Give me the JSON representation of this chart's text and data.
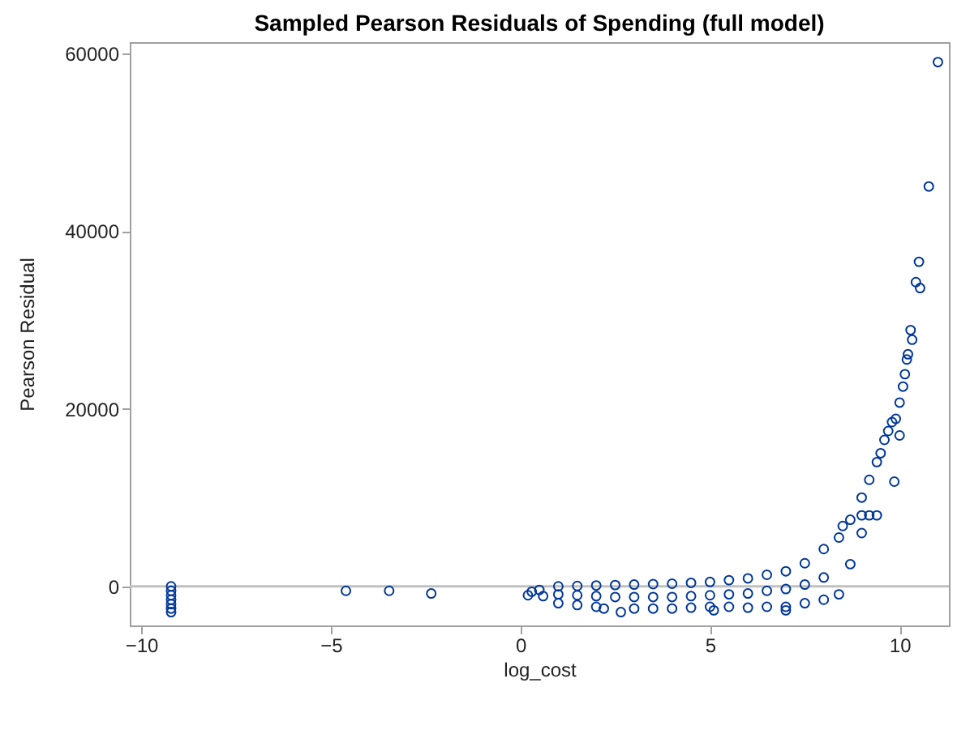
{
  "chart_data": {
    "type": "scatter",
    "title": "Sampled Pearson Residuals of Spending (full model)",
    "xlabel": "log_cost",
    "ylabel": "Pearson Residual",
    "xlim": [
      -10.3,
      11.3
    ],
    "xticks": [
      -10,
      -5,
      0,
      5,
      10
    ],
    "ylim": [
      -4400,
      61300
    ],
    "yticks": [
      0,
      20000,
      40000,
      60000
    ],
    "grid": false,
    "marker": "circle",
    "ref_lines": [
      {
        "axis": "y",
        "value": 0,
        "color": "#c0c0c0"
      }
    ],
    "series": [
      {
        "color": "#00379a",
        "x": [
          -9.21,
          -9.21,
          -9.21,
          -9.21,
          -9.21,
          -9.21,
          -9.21,
          -4.6,
          -3.46,
          -2.35,
          0.2,
          0.3,
          0.5,
          0.6,
          1.0,
          1.0,
          1.0,
          1.5,
          1.5,
          1.5,
          2.0,
          2.0,
          2.0,
          2.2,
          2.65,
          2.5,
          2.5,
          3.0,
          3.0,
          3.0,
          3.5,
          3.5,
          3.5,
          4.0,
          4.0,
          4.0,
          4.5,
          4.5,
          4.5,
          5.0,
          5.0,
          5.0,
          5.1,
          5.5,
          5.5,
          5.5,
          6.0,
          6.0,
          6.0,
          6.5,
          6.5,
          6.5,
          7.0,
          7.0,
          7.0,
          7.0,
          7.5,
          7.5,
          7.5,
          8.0,
          8.0,
          8.0,
          8.4,
          8.4,
          8.5,
          8.7,
          8.7,
          9.0,
          9.0,
          9.0,
          9.2,
          9.2,
          9.4,
          9.4,
          9.5,
          9.6,
          9.7,
          9.8,
          9.86,
          9.9,
          10.0,
          10.0,
          10.09,
          10.14,
          10.19,
          10.22,
          10.29,
          10.33,
          10.43,
          10.51,
          10.54,
          10.77,
          11.01
        ],
        "values": [
          0,
          -500,
          -1000,
          -1500,
          -2000,
          -2500,
          -2900,
          -500,
          -500,
          -800,
          -1000,
          -600,
          -400,
          -1100,
          0,
          -900,
          -1900,
          50,
          -1000,
          -2100,
          100,
          -1100,
          -2300,
          -2500,
          -2900,
          150,
          -1200,
          200,
          -1200,
          -2500,
          250,
          -1200,
          -2500,
          300,
          -1200,
          -2500,
          400,
          -1100,
          -2400,
          500,
          -1000,
          -2300,
          -2700,
          700,
          -900,
          -2300,
          900,
          -800,
          -2400,
          1300,
          -500,
          -2300,
          1700,
          -300,
          -2300,
          -2700,
          2600,
          200,
          -1900,
          4200,
          1000,
          -1500,
          5500,
          -900,
          6800,
          7500,
          2500,
          10000,
          6000,
          8000,
          12000,
          8000,
          14000,
          8000,
          15000,
          16500,
          17500,
          18500,
          11800,
          18870,
          20700,
          17000,
          22500,
          23900,
          25550,
          26140,
          28870,
          27780,
          34270,
          36560,
          33600,
          45040,
          59050
        ]
      }
    ]
  }
}
